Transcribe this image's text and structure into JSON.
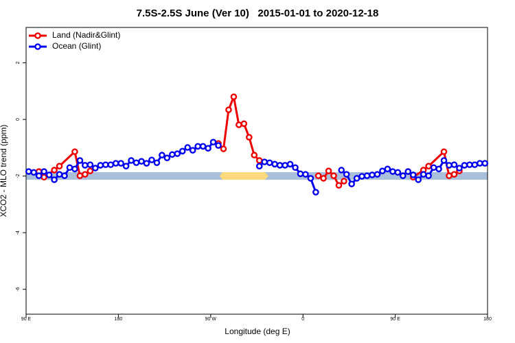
{
  "chart_data": {
    "type": "line",
    "title": "7.5S-2.5S June (Ver 10)   2015-01-01 to 2020-12-18",
    "xlabel": "Longitude (deg E)",
    "ylabel": "XCO2 - MLO trend (ppm)",
    "xlim": [
      90,
      540
    ],
    "ylim": [
      -6.88,
      3.25
    ],
    "xticks": [
      {
        "value": 90,
        "label": "90 E"
      },
      180,
      {
        "value": 270,
        "label": "90 W"
      },
      {
        "value": 360,
        "label": "0"
      },
      {
        "value": 450,
        "label": "90 E"
      },
      {
        "value": 540,
        "label": "180"
      }
    ],
    "yticks": [
      2,
      0,
      -2,
      -4,
      -6
    ],
    "legend": "top-left",
    "series": [
      {
        "name": "Land (Nadir&Glint)",
        "color": "#ee0000",
        "x": [
          102.5,
          107.5,
          117.5,
          122.5,
          137.5,
          142.5,
          147.5,
          152.5,
          157.5,
          277.5,
          282.5,
          287.5,
          292.5,
          297.5,
          302.5,
          307.5,
          312.5,
          317.5,
          322.5,
          375,
          380,
          385,
          390,
          395,
          400,
          457.5,
          462.5,
          467.5,
          477.5,
          482.5,
          497.5,
          502.5,
          507.5,
          512.5
        ],
        "values": [
          -1.84,
          -2.04,
          -1.79,
          -1.65,
          -1.14,
          -1.99,
          -1.94,
          -1.82,
          null,
          -0.85,
          -1.04,
          0.34,
          0.8,
          -0.19,
          -0.15,
          -0.63,
          -1.26,
          -1.45,
          null,
          -1.99,
          -2.08,
          -1.82,
          -1.99,
          -2.33,
          -2.18,
          null,
          -1.84,
          -2.04,
          -1.79,
          -1.65,
          -1.14,
          -1.99,
          -1.94,
          -1.82
        ]
      },
      {
        "name": "Ocean (Glint)",
        "color": "#0000ee",
        "x": [
          92.5,
          97.5,
          102.5,
          107.5,
          112.5,
          117.5,
          122.5,
          127.5,
          132.5,
          137.5,
          142.5,
          147.5,
          152.5,
          157.5,
          162.5,
          167.5,
          172.5,
          177.5,
          182.5,
          187.5,
          192.5,
          197.5,
          202.5,
          207.5,
          212.5,
          217.5,
          222.5,
          227.5,
          232.5,
          237.5,
          242.5,
          247.5,
          252.5,
          257.5,
          262.5,
          267.5,
          272.5,
          277.5,
          297.5,
          317.5,
          322.5,
          327.5,
          332.5,
          337.5,
          342.5,
          347.5,
          352.5,
          357.5,
          362.5,
          367.5,
          372.5,
          385,
          397.5,
          402.5,
          407.5,
          412.5,
          417.5,
          422.5,
          427.5,
          432.5,
          437.5,
          442.5,
          447.5,
          452.5,
          457.5,
          462.5,
          467.5,
          472.5,
          477.5,
          482.5,
          487.5,
          492.5,
          497.5,
          502.5,
          507.5,
          512.5,
          517.5,
          522.5,
          527.5,
          532.5,
          537.5
        ],
        "values": [
          -1.84,
          -1.87,
          -1.99,
          -1.84,
          -1.96,
          -2.13,
          -1.94,
          -1.99,
          -1.7,
          -1.75,
          -1.45,
          -1.62,
          -1.6,
          -1.72,
          -1.62,
          -1.6,
          -1.6,
          -1.55,
          -1.55,
          -1.65,
          -1.45,
          -1.53,
          -1.48,
          -1.55,
          -1.43,
          -1.53,
          -1.26,
          -1.36,
          -1.24,
          -1.21,
          -1.12,
          -0.99,
          -1.09,
          -0.95,
          -0.95,
          -1.02,
          -0.8,
          -0.92,
          null,
          -1.65,
          -1.5,
          -1.53,
          -1.58,
          -1.62,
          -1.62,
          -1.58,
          -1.7,
          -1.92,
          -1.94,
          -2.08,
          -2.57,
          null,
          -1.79,
          -1.94,
          -2.28,
          -2.08,
          -2.01,
          -1.99,
          -1.96,
          -1.94,
          -1.82,
          -1.75,
          -1.84,
          -1.87,
          -1.99,
          -1.84,
          -1.96,
          -2.13,
          -1.94,
          -1.99,
          -1.7,
          -1.75,
          -1.45,
          -1.62,
          -1.6,
          -1.72,
          -1.62,
          -1.6,
          -1.6,
          -1.55,
          -1.55
        ]
      }
    ]
  }
}
